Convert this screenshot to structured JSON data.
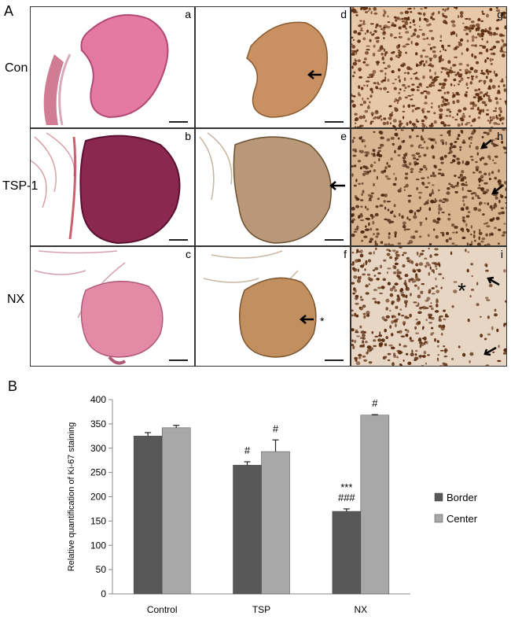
{
  "figure": {
    "panel_a": "A",
    "panel_b": "B",
    "row_labels": [
      "Con",
      "TSP-1",
      "NX"
    ],
    "cell_letters": [
      "a",
      "d",
      "g",
      "b",
      "e",
      "h",
      "c",
      "f",
      "i"
    ],
    "asterisk_mark": "*"
  },
  "chart_data": {
    "type": "bar",
    "title": "",
    "xlabel": "",
    "ylabel": "Relative quantification of Ki-67 staining",
    "categories": [
      "Control",
      "TSP",
      "NX"
    ],
    "ylim": [
      0,
      400
    ],
    "yticks": [
      0,
      50,
      100,
      150,
      200,
      250,
      300,
      350,
      400
    ],
    "grid": false,
    "legend": "right",
    "series": [
      {
        "name": "Border",
        "values": [
          325,
          265,
          170
        ],
        "errors": [
          7,
          7,
          5
        ],
        "color": "#585858"
      },
      {
        "name": "Center",
        "values": [
          342,
          293,
          368
        ],
        "errors": [
          5,
          24,
          1
        ],
        "color": "#a8a8a8"
      }
    ],
    "annotations": [
      {
        "category": "TSP",
        "series": "Border",
        "lines": [
          "#"
        ]
      },
      {
        "category": "TSP",
        "series": "Center",
        "lines": [
          "#"
        ]
      },
      {
        "category": "NX",
        "series": "Border",
        "lines": [
          "***",
          "###"
        ]
      },
      {
        "category": "NX",
        "series": "Center",
        "lines": [
          "#"
        ]
      }
    ]
  }
}
